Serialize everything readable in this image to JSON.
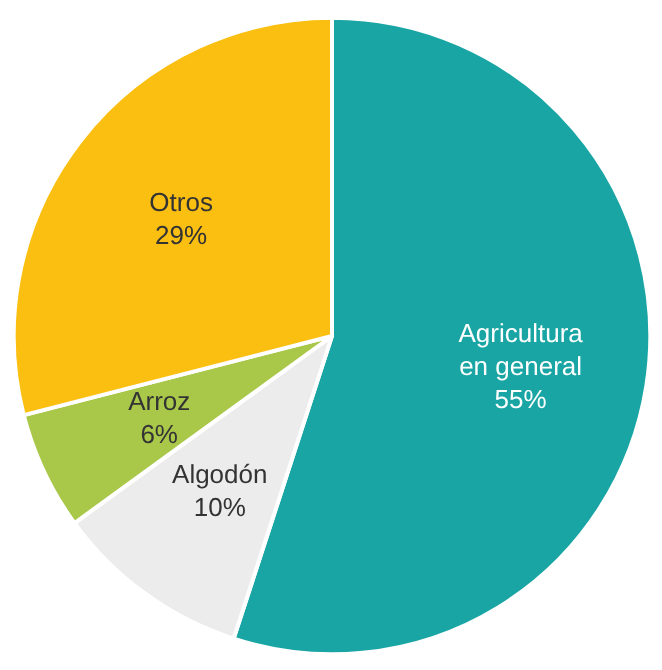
{
  "chart_data": {
    "type": "pie",
    "categories": [
      "Agricultura en general",
      "Algodón",
      "Arroz",
      "Otros"
    ],
    "values": [
      55,
      10,
      6,
      29
    ],
    "colors": [
      "#1aa5a5",
      "#ececec",
      "#a9c84a",
      "#fbbf12"
    ],
    "value_labels": [
      "55%",
      "10%",
      "6%",
      "29%"
    ]
  }
}
